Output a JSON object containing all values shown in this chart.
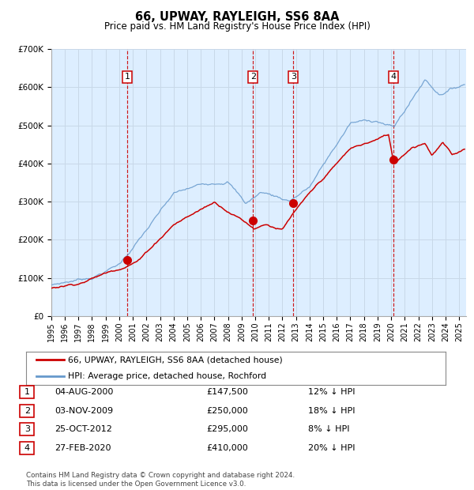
{
  "title": "66, UPWAY, RAYLEIGH, SS6 8AA",
  "subtitle": "Price paid vs. HM Land Registry's House Price Index (HPI)",
  "background_color": "#ffffff",
  "plot_bg_color": "#ddeeff",
  "grid_color": "#c8d8e8",
  "ylim": [
    0,
    700000
  ],
  "xlim_start": 1995.0,
  "xlim_end": 2025.5,
  "yticks": [
    0,
    100000,
    200000,
    300000,
    400000,
    500000,
    600000,
    700000
  ],
  "ytick_labels": [
    "£0",
    "£100K",
    "£200K",
    "£300K",
    "£400K",
    "£500K",
    "£600K",
    "£700K"
  ],
  "xticks": [
    1995,
    1996,
    1997,
    1998,
    1999,
    2000,
    2001,
    2002,
    2003,
    2004,
    2005,
    2006,
    2007,
    2008,
    2009,
    2010,
    2011,
    2012,
    2013,
    2014,
    2015,
    2016,
    2017,
    2018,
    2019,
    2020,
    2021,
    2022,
    2023,
    2024,
    2025
  ],
  "sale_dates": [
    2000.59,
    2009.84,
    2012.81,
    2020.16
  ],
  "sale_prices": [
    147500,
    250000,
    295000,
    410000
  ],
  "sale_labels": [
    "1",
    "2",
    "3",
    "4"
  ],
  "vline_color": "#cc0000",
  "sale_color": "#cc0000",
  "sale_marker_size": 7,
  "legend_label_red": "66, UPWAY, RAYLEIGH, SS6 8AA (detached house)",
  "legend_label_blue": "HPI: Average price, detached house, Rochford",
  "legend_color_red": "#cc0000",
  "legend_color_blue": "#6699cc",
  "table_rows": [
    {
      "num": "1",
      "date": "04-AUG-2000",
      "price": "£147,500",
      "pct": "12% ↓ HPI"
    },
    {
      "num": "2",
      "date": "03-NOV-2009",
      "price": "£250,000",
      "pct": "18% ↓ HPI"
    },
    {
      "num": "3",
      "date": "25-OCT-2012",
      "price": "£295,000",
      "pct": "8% ↓ HPI"
    },
    {
      "num": "4",
      "date": "27-FEB-2020",
      "price": "£410,000",
      "pct": "20% ↓ HPI"
    }
  ],
  "footnote": "Contains HM Land Registry data © Crown copyright and database right 2024.\nThis data is licensed under the Open Government Licence v3.0."
}
